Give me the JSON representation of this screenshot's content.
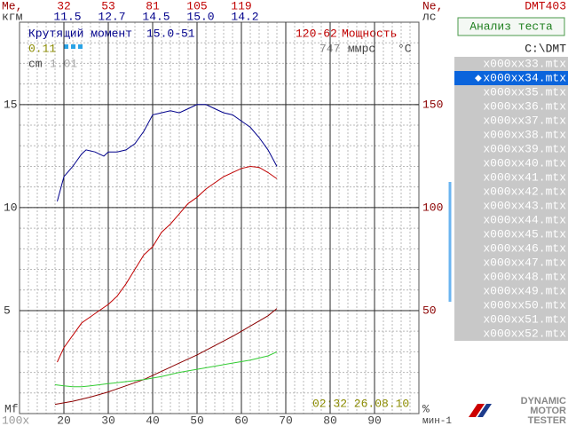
{
  "chart_data": {
    "type": "line",
    "xlim": [
      10,
      100
    ],
    "xticks": [
      20,
      30,
      40,
      50,
      60,
      70,
      80,
      90
    ],
    "ylim": [
      0,
      19
    ],
    "yticks": [
      5,
      10,
      15
    ],
    "y2lim": [
      0,
      190
    ],
    "y2ticks": [
      50,
      100,
      150
    ],
    "grid": true,
    "y_label": [
      "Me,",
      "кгм"
    ],
    "y2_label": [
      "Ne,",
      "лс"
    ],
    "x_label": "мин-1",
    "x_scale_label": "100x",
    "bottom_left_label": "Mf",
    "bottom_right_label": "%",
    "series": [
      {
        "name": "Крутящий момент",
        "color": "#00008b",
        "axis": "y",
        "x": [
          18.5,
          20,
          22,
          24,
          25,
          27,
          29,
          30,
          32,
          34,
          36,
          38,
          40,
          42,
          44,
          46,
          48,
          50,
          52,
          54,
          56,
          58,
          60,
          62,
          64,
          66,
          68
        ],
        "values": [
          10.3,
          11.5,
          12.0,
          12.6,
          12.8,
          12.7,
          12.5,
          12.7,
          12.7,
          12.8,
          13.1,
          13.7,
          14.5,
          14.6,
          14.7,
          14.6,
          14.8,
          15.0,
          15.0,
          14.8,
          14.6,
          14.5,
          14.2,
          13.9,
          13.4,
          12.8,
          12.0
        ]
      },
      {
        "name": "Мощность",
        "color": "#c00000",
        "axis": "y2",
        "x": [
          18.5,
          20,
          22,
          24,
          26,
          28,
          30,
          32,
          34,
          36,
          38,
          40,
          42,
          44,
          46,
          48,
          50,
          52,
          54,
          56,
          58,
          60,
          62,
          64,
          66,
          68
        ],
        "values": [
          25,
          32,
          38,
          44,
          47,
          50,
          53,
          57,
          63,
          70,
          77,
          81,
          88,
          92,
          97,
          102,
          105,
          109,
          112,
          115,
          117,
          119,
          120,
          119.5,
          117,
          114
        ]
      },
      {
        "color": "#8b0000",
        "axis": "y",
        "x": [
          18,
          22,
          26,
          30,
          34,
          38,
          42,
          46,
          50,
          54,
          58,
          62,
          66,
          68
        ],
        "values": [
          0.45,
          0.6,
          0.8,
          1.05,
          1.35,
          1.65,
          2.05,
          2.45,
          2.85,
          3.3,
          3.75,
          4.25,
          4.75,
          5.1
        ]
      },
      {
        "color": "#33cc33",
        "axis": "y",
        "x": [
          18,
          20,
          22,
          24,
          26,
          28,
          30,
          34,
          38,
          42,
          46,
          50,
          54,
          58,
          62,
          66,
          68
        ],
        "values": [
          1.4,
          1.35,
          1.3,
          1.3,
          1.35,
          1.4,
          1.45,
          1.55,
          1.65,
          1.8,
          2.0,
          2.15,
          2.3,
          2.45,
          2.6,
          2.8,
          3.0
        ]
      }
    ],
    "annotations": {
      "torque_peak": "15.0-51",
      "power_peak": "120-62",
      "mf": "0.11",
      "cm_label": "cm",
      "cm": "1.01",
      "pressure": "747",
      "pressure_unit": "ммрс",
      "temp_unit": "°C",
      "timestamp": "02:32 26.08.10"
    },
    "readouts": {
      "power": [
        32,
        53,
        81,
        105,
        119
      ],
      "torque": [
        "11.5",
        "12.7",
        "14.5",
        "15.0",
        "14.2"
      ]
    }
  },
  "device": "DMT403",
  "file_panel": {
    "button": "Анализ теста",
    "path": "C:\\DMT",
    "selected_marker": "◆",
    "selected": 1,
    "files": [
      "x000xx33.mtx",
      "x000xx34.mtx",
      "x000xx35.mtx",
      "x000xx36.mtx",
      "x000xx37.mtx",
      "x000xx38.mtx",
      "x000xx39.mtx",
      "x000xx40.mtx",
      "x000xx41.mtx",
      "x000xx42.mtx",
      "x000xx43.mtx",
      "x000xx44.mtx",
      "x000xx45.mtx",
      "x000xx46.mtx",
      "x000xx47.mtx",
      "x000xx48.mtx",
      "x000xx49.mtx",
      "x000xx50.mtx",
      "x000xx51.mtx",
      "x000xx52.mtx"
    ]
  },
  "logo": [
    "DYNAMIC",
    "MOTOR",
    "TESTER"
  ]
}
